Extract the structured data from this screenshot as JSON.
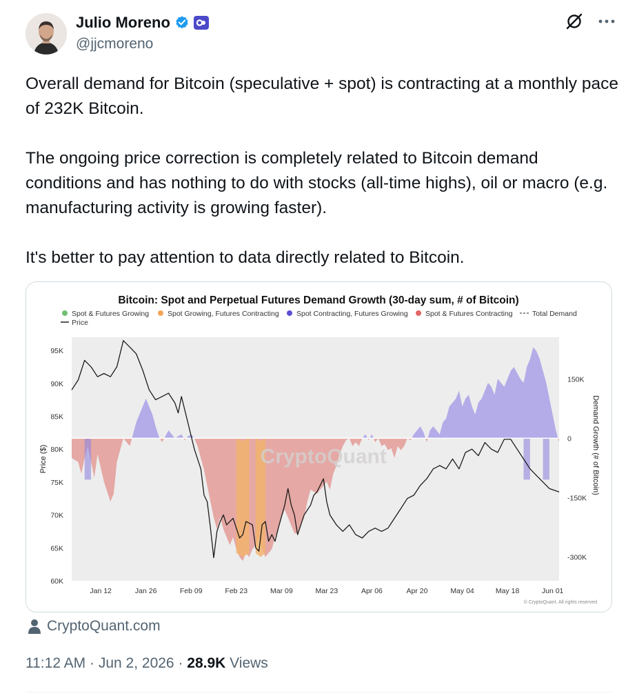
{
  "author": {
    "name": "Julio Moreno",
    "handle": "@jjcmoreno",
    "affiliate_badge": "CQ"
  },
  "tweet": {
    "paragraphs": [
      "Overall demand for Bitcoin (speculative + spot) is contracting at a monthly pace of 232K Bitcoin.",
      "The ongoing price correction is completely related to Bitcoin demand conditions and has nothing to do with stocks (all-time highs), oil or macro (e.g. manufacturing activity is growing faster).",
      "It's better to pay attention to data directly related to Bitcoin."
    ]
  },
  "link_source": "CryptoQuant.com",
  "meta": {
    "time": "11:12 AM",
    "date": "Jun 2, 2026",
    "views_count": "28.9K",
    "views_label": "Views"
  },
  "chart_data": {
    "type": "area",
    "title": "Bitcoin: Spot and Perpetual Futures Demand Growth (30-day sum, # of Bitcoin)",
    "legend": [
      {
        "name": "Spot & Futures Growing",
        "color": "#6fbf73",
        "marker": "dot"
      },
      {
        "name": "Spot Growing, Futures Contracting",
        "color": "#f2a65a",
        "marker": "dot"
      },
      {
        "name": "Spot Contracting, Futures Growing",
        "color": "#5b4fd6",
        "marker": "dot"
      },
      {
        "name": "Spot & Futures Contracting",
        "color": "#e06666",
        "marker": "dot"
      },
      {
        "name": "Total Demand",
        "color": "#555555",
        "marker": "dash"
      },
      {
        "name": "Price",
        "color": "#222222",
        "marker": "line"
      }
    ],
    "watermark": "CryptoQuant",
    "copyright": "© CryptoQuant. All rights reserved",
    "xlabel": "",
    "x_ticks": [
      "Jan 12",
      "Jan 26",
      "Feb 09",
      "Feb 23",
      "Mar 09",
      "Mar 23",
      "Apr 06",
      "Apr 20",
      "May 04",
      "May 18",
      "Jun 01"
    ],
    "y_left": {
      "label": "Price ($)",
      "ticks": [
        "95K",
        "90K",
        "85K",
        "80K",
        "75K",
        "70K",
        "65K",
        "60K"
      ],
      "range": [
        60000,
        97000
      ]
    },
    "y_right": {
      "label": "Demand Growth (# of Bitcoin)",
      "ticks": [
        "150K",
        "0",
        "-150K",
        "-300K"
      ],
      "range": [
        -360000,
        255000
      ]
    },
    "day_range": [
      0,
      151
    ],
    "x_tick_days": [
      9,
      23,
      37,
      51,
      65,
      79,
      93,
      107,
      121,
      135,
      149
    ],
    "demand_series": [
      [
        0,
        -50000
      ],
      [
        2,
        -60000
      ],
      [
        3,
        -90000
      ],
      [
        4,
        -50000
      ],
      [
        5,
        -20000
      ],
      [
        7,
        -100000
      ],
      [
        8,
        -40000
      ],
      [
        10,
        -110000
      ],
      [
        12,
        -160000
      ],
      [
        13,
        -140000
      ],
      [
        14,
        -60000
      ],
      [
        15,
        -30000
      ],
      [
        16,
        0
      ],
      [
        17,
        -10000
      ],
      [
        18,
        -20000
      ],
      [
        19,
        10000
      ],
      [
        20,
        40000
      ],
      [
        21,
        60000
      ],
      [
        22,
        80000
      ],
      [
        23,
        100000
      ],
      [
        24,
        80000
      ],
      [
        25,
        60000
      ],
      [
        26,
        30000
      ],
      [
        27,
        5000
      ],
      [
        28,
        -10000
      ],
      [
        29,
        5000
      ],
      [
        30,
        20000
      ],
      [
        31,
        10000
      ],
      [
        32,
        0
      ],
      [
        33,
        5000
      ],
      [
        34,
        10000
      ],
      [
        35,
        -5000
      ],
      [
        36,
        5000
      ],
      [
        37,
        10000
      ],
      [
        38,
        0
      ],
      [
        39,
        -20000
      ],
      [
        40,
        -50000
      ],
      [
        41,
        -80000
      ],
      [
        42,
        -120000
      ],
      [
        43,
        -160000
      ],
      [
        44,
        -200000
      ],
      [
        45,
        -230000
      ],
      [
        46,
        -200000
      ],
      [
        47,
        -230000
      ],
      [
        48,
        -250000
      ],
      [
        49,
        -270000
      ],
      [
        50,
        -250000
      ],
      [
        51,
        -280000
      ],
      [
        52,
        -300000
      ],
      [
        53,
        -310000
      ],
      [
        54,
        -290000
      ],
      [
        55,
        -300000
      ],
      [
        56,
        -280000
      ],
      [
        57,
        -270000
      ],
      [
        58,
        -250000
      ],
      [
        59,
        -280000
      ],
      [
        60,
        -300000
      ],
      [
        61,
        -290000
      ],
      [
        62,
        -280000
      ],
      [
        63,
        -250000
      ],
      [
        64,
        -230000
      ],
      [
        65,
        -200000
      ],
      [
        66,
        -180000
      ],
      [
        67,
        -200000
      ],
      [
        68,
        -220000
      ],
      [
        69,
        -240000
      ],
      [
        70,
        -240000
      ],
      [
        71,
        -220000
      ],
      [
        72,
        -200000
      ],
      [
        73,
        -160000
      ],
      [
        74,
        -130000
      ],
      [
        75,
        -135000
      ],
      [
        76,
        -140000
      ],
      [
        77,
        -130000
      ],
      [
        78,
        -120000
      ],
      [
        79,
        -110000
      ],
      [
        80,
        -130000
      ],
      [
        81,
        -90000
      ],
      [
        82,
        -70000
      ],
      [
        83,
        -40000
      ],
      [
        84,
        -20000
      ],
      [
        85,
        -5000
      ],
      [
        86,
        0
      ],
      [
        87,
        -20000
      ],
      [
        88,
        -10000
      ],
      [
        89,
        -20000
      ],
      [
        90,
        0
      ],
      [
        91,
        10000
      ],
      [
        92,
        -5000
      ],
      [
        93,
        10000
      ],
      [
        94,
        -10000
      ],
      [
        95,
        0
      ],
      [
        96,
        -20000
      ],
      [
        97,
        -15000
      ],
      [
        98,
        -30000
      ],
      [
        99,
        -25000
      ],
      [
        100,
        -50000
      ],
      [
        101,
        -20000
      ],
      [
        102,
        -30000
      ],
      [
        103,
        -20000
      ],
      [
        104,
        0
      ],
      [
        105,
        -5000
      ],
      [
        106,
        10000
      ],
      [
        107,
        20000
      ],
      [
        108,
        30000
      ],
      [
        109,
        15000
      ],
      [
        110,
        -10000
      ],
      [
        111,
        20000
      ],
      [
        112,
        30000
      ],
      [
        113,
        20000
      ],
      [
        114,
        10000
      ],
      [
        115,
        40000
      ],
      [
        116,
        50000
      ],
      [
        117,
        80000
      ],
      [
        118,
        90000
      ],
      [
        119,
        100000
      ],
      [
        120,
        120000
      ],
      [
        121,
        80000
      ],
      [
        122,
        100000
      ],
      [
        123,
        110000
      ],
      [
        124,
        80000
      ],
      [
        125,
        60000
      ],
      [
        126,
        90000
      ],
      [
        127,
        100000
      ],
      [
        128,
        120000
      ],
      [
        129,
        140000
      ],
      [
        130,
        130000
      ],
      [
        131,
        110000
      ],
      [
        132,
        150000
      ],
      [
        133,
        140000
      ],
      [
        134,
        130000
      ],
      [
        135,
        150000
      ],
      [
        136,
        170000
      ],
      [
        137,
        180000
      ],
      [
        138,
        165000
      ],
      [
        139,
        150000
      ],
      [
        140,
        140000
      ],
      [
        141,
        180000
      ],
      [
        142,
        200000
      ],
      [
        143,
        230000
      ],
      [
        144,
        220000
      ],
      [
        145,
        200000
      ],
      [
        146,
        170000
      ],
      [
        147,
        140000
      ],
      [
        148,
        100000
      ],
      [
        149,
        60000
      ],
      [
        150,
        20000
      ],
      [
        151,
        -10000
      ]
    ],
    "price_series": [
      [
        0,
        89000
      ],
      [
        2,
        90500
      ],
      [
        4,
        93500
      ],
      [
        6,
        92500
      ],
      [
        8,
        91000
      ],
      [
        10,
        91500
      ],
      [
        12,
        91000
      ],
      [
        14,
        92500
      ],
      [
        16,
        96500
      ],
      [
        18,
        95500
      ],
      [
        20,
        94500
      ],
      [
        22,
        92000
      ],
      [
        24,
        89000
      ],
      [
        26,
        87500
      ],
      [
        28,
        88000
      ],
      [
        30,
        88500
      ],
      [
        32,
        87000
      ],
      [
        33,
        85500
      ],
      [
        34,
        88000
      ],
      [
        36,
        84000
      ],
      [
        38,
        80000
      ],
      [
        40,
        77000
      ],
      [
        41,
        73000
      ],
      [
        42,
        72000
      ],
      [
        43,
        68000
      ],
      [
        44,
        63500
      ],
      [
        45,
        67500
      ],
      [
        46,
        69000
      ],
      [
        47,
        70000
      ],
      [
        48,
        68500
      ],
      [
        50,
        69500
      ],
      [
        52,
        66500
      ],
      [
        53,
        67000
      ],
      [
        54,
        69000
      ],
      [
        56,
        68500
      ],
      [
        57,
        65000
      ],
      [
        58,
        64500
      ],
      [
        59,
        68500
      ],
      [
        60,
        69000
      ],
      [
        61,
        66000
      ],
      [
        62,
        67000
      ],
      [
        63,
        66000
      ],
      [
        64,
        68000
      ],
      [
        66,
        71500
      ],
      [
        67,
        74000
      ],
      [
        68,
        71500
      ],
      [
        69,
        70000
      ],
      [
        70,
        67000
      ],
      [
        72,
        70000
      ],
      [
        74,
        71500
      ],
      [
        75,
        73000
      ],
      [
        76,
        73500
      ],
      [
        78,
        75500
      ],
      [
        79,
        72000
      ],
      [
        80,
        70000
      ],
      [
        82,
        68500
      ],
      [
        84,
        67500
      ],
      [
        86,
        68500
      ],
      [
        88,
        67000
      ],
      [
        90,
        66500
      ],
      [
        92,
        67500
      ],
      [
        94,
        68000
      ],
      [
        96,
        67500
      ],
      [
        98,
        68000
      ],
      [
        100,
        69500
      ],
      [
        102,
        71000
      ],
      [
        104,
        72500
      ],
      [
        106,
        73000
      ],
      [
        108,
        74500
      ],
      [
        110,
        75500
      ],
      [
        112,
        77000
      ],
      [
        114,
        77500
      ],
      [
        116,
        77000
      ],
      [
        118,
        78500
      ],
      [
        120,
        77000
      ],
      [
        122,
        79500
      ],
      [
        124,
        80000
      ],
      [
        126,
        79000
      ],
      [
        128,
        81000
      ],
      [
        130,
        80000
      ],
      [
        132,
        79500
      ],
      [
        134,
        81500
      ],
      [
        136,
        81500
      ],
      [
        138,
        80000
      ],
      [
        140,
        78500
      ],
      [
        142,
        77000
      ],
      [
        144,
        76000
      ],
      [
        146,
        75000
      ],
      [
        148,
        74000
      ],
      [
        151,
        73500
      ]
    ]
  }
}
